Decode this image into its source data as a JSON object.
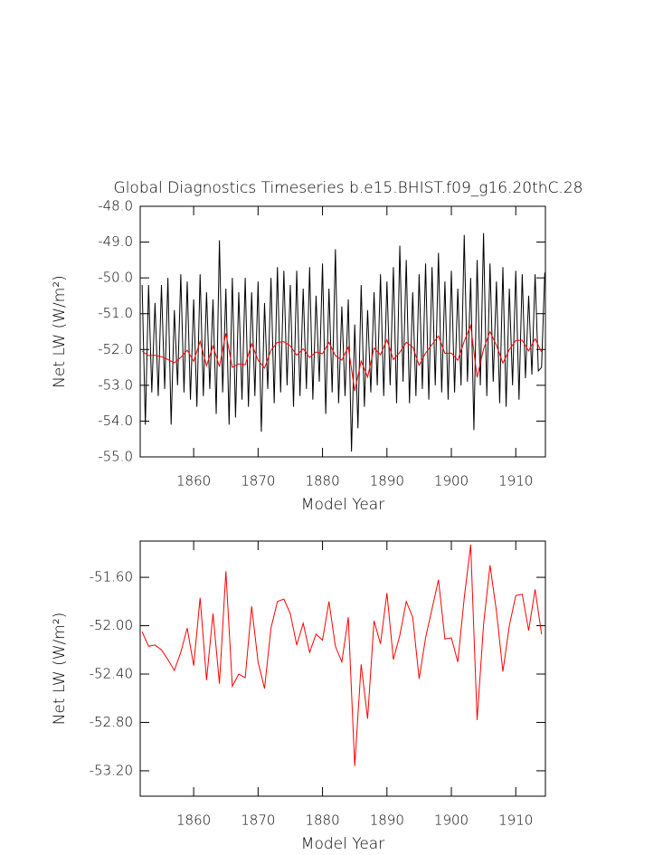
{
  "chart_data": [
    {
      "type": "line",
      "title": "Global Diagnostics Timeseries b.e15.BHIST.f09_g16.20thC.28",
      "x_label": "Model Year",
      "y_label": "Net LW (W/m²)",
      "xlim": [
        1851.7,
        1914.6
      ],
      "xticks": [
        1860,
        1870,
        1880,
        1890,
        1900,
        1910
      ],
      "ylim": [
        -55,
        -48
      ],
      "yticks": [
        {
          "value": -55,
          "label": "-55.0"
        },
        {
          "value": -54,
          "label": "-54.0"
        },
        {
          "value": -53,
          "label": "-53.0"
        },
        {
          "value": -52,
          "label": "-52.0"
        },
        {
          "value": -51,
          "label": "-51.0"
        },
        {
          "value": -50,
          "label": "-50.0"
        },
        {
          "value": -49,
          "label": "-49.0"
        },
        {
          "value": -48,
          "label": "-48.0"
        }
      ],
      "series": [
        {
          "color": "#000000",
          "x": [
            1852,
            1852.5,
            1853,
            1853.5,
            1854,
            1854.5,
            1855,
            1855.5,
            1856,
            1856.5,
            1857,
            1857.5,
            1858,
            1858.5,
            1859,
            1859.5,
            1860,
            1860.5,
            1861,
            1861.5,
            1862,
            1862.5,
            1863,
            1863.5,
            1864,
            1864.5,
            1865,
            1865.5,
            1866,
            1866.5,
            1867,
            1867.5,
            1868,
            1868.5,
            1869,
            1869.5,
            1870,
            1870.5,
            1871,
            1871.5,
            1872,
            1872.5,
            1873,
            1873.5,
            1874,
            1874.5,
            1875,
            1875.5,
            1876,
            1876.5,
            1877,
            1877.5,
            1878,
            1878.5,
            1879,
            1879.5,
            1880,
            1880.5,
            1881,
            1881.5,
            1882,
            1882.5,
            1883,
            1883.5,
            1884,
            1884.5,
            1885,
            1885.5,
            1886,
            1886.5,
            1887,
            1887.5,
            1888,
            1888.5,
            1889,
            1889.5,
            1890,
            1890.5,
            1891,
            1891.5,
            1892,
            1892.5,
            1893,
            1893.5,
            1894,
            1894.5,
            1895,
            1895.5,
            1896,
            1896.5,
            1897,
            1897.5,
            1898,
            1898.5,
            1899,
            1899.5,
            1900,
            1900.5,
            1901,
            1901.5,
            1902,
            1902.5,
            1903,
            1903.5,
            1904,
            1904.5,
            1905,
            1905.5,
            1906,
            1906.5,
            1907,
            1907.5,
            1908,
            1908.5,
            1909,
            1909.5,
            1910,
            1910.5,
            1911,
            1911.5,
            1912,
            1912.5,
            1913,
            1913.5,
            1914,
            1914.5
          ],
          "values": [
            -50.2,
            -54.1,
            -50.2,
            -53.2,
            -50.7,
            -53.3,
            -50.2,
            -53.1,
            -50.0,
            -54.1,
            -50.9,
            -53.0,
            -49.9,
            -53.2,
            -50.1,
            -53.4,
            -50.6,
            -53.6,
            -49.9,
            -53.3,
            -50.4,
            -53.1,
            -50.6,
            -53.8,
            -48.95,
            -53.2,
            -50.3,
            -54.1,
            -50.0,
            -53.9,
            -50.4,
            -53.4,
            -50.0,
            -53.6,
            -50.4,
            -53.3,
            -50.1,
            -54.3,
            -50.7,
            -53.1,
            -50.0,
            -53.5,
            -49.7,
            -53.2,
            -49.8,
            -53.0,
            -50.2,
            -53.6,
            -49.8,
            -53.3,
            -50.3,
            -53.1,
            -49.7,
            -53.4,
            -50.5,
            -52.9,
            -49.6,
            -53.8,
            -50.3,
            -53.2,
            -49.2,
            -53.5,
            -50.8,
            -53.3,
            -50.6,
            -54.85,
            -51.3,
            -54.2,
            -50.2,
            -53.6,
            -50.9,
            -53.2,
            -50.4,
            -53.0,
            -49.9,
            -53.3,
            -50.1,
            -53.0,
            -49.7,
            -53.5,
            -49.1,
            -52.9,
            -49.5,
            -53.5,
            -50.4,
            -53.3,
            -49.9,
            -53.1,
            -49.6,
            -53.4,
            -49.7,
            -53.0,
            -49.3,
            -53.2,
            -50.1,
            -53.4,
            -49.8,
            -53.2,
            -50.3,
            -53.0,
            -48.8,
            -52.9,
            -50.0,
            -54.25,
            -49.5,
            -53.0,
            -48.75,
            -53.3,
            -49.6,
            -52.9,
            -50.1,
            -53.5,
            -49.7,
            -53.6,
            -50.3,
            -53.0,
            -49.8,
            -53.4,
            -49.9,
            -52.8,
            -50.5,
            -52.7,
            -49.9,
            -52.6,
            -52.5,
            -49.85
          ]
        },
        {
          "color": "#ff0000",
          "x": [
            1852,
            1853,
            1854,
            1855,
            1856,
            1857,
            1858,
            1859,
            1860,
            1861,
            1862,
            1863,
            1864,
            1865,
            1866,
            1867,
            1868,
            1869,
            1870,
            1871,
            1872,
            1873,
            1874,
            1875,
            1876,
            1877,
            1878,
            1879,
            1880,
            1881,
            1882,
            1883,
            1884,
            1885,
            1886,
            1887,
            1888,
            1889,
            1890,
            1891,
            1892,
            1893,
            1894,
            1895,
            1896,
            1897,
            1898,
            1899,
            1900,
            1901,
            1902,
            1903,
            1904,
            1905,
            1906,
            1907,
            1908,
            1909,
            1910,
            1911,
            1912,
            1913,
            1914
          ],
          "values": [
            -52.05,
            -52.17,
            -52.16,
            -52.2,
            -52.28,
            -52.37,
            -52.22,
            -52.02,
            -52.33,
            -51.77,
            -52.45,
            -51.9,
            -52.48,
            -51.55,
            -52.5,
            -52.4,
            -52.43,
            -51.84,
            -52.3,
            -52.52,
            -52.02,
            -51.8,
            -51.78,
            -51.9,
            -52.16,
            -51.98,
            -52.22,
            -52.07,
            -52.12,
            -51.8,
            -52.17,
            -52.3,
            -51.93,
            -53.16,
            -52.32,
            -52.77,
            -51.96,
            -52.15,
            -51.73,
            -52.28,
            -52.08,
            -51.8,
            -51.93,
            -52.44,
            -52.1,
            -51.86,
            -51.62,
            -52.11,
            -52.1,
            -52.3,
            -51.77,
            -51.33,
            -52.78,
            -51.99,
            -51.5,
            -51.88,
            -52.38,
            -52.0,
            -51.75,
            -51.74,
            -52.04,
            -51.7,
            -52.07
          ]
        }
      ]
    },
    {
      "type": "line",
      "x_label": "Model Year",
      "y_label": "Net LW (W/m²)",
      "xlim": [
        1851.7,
        1914.6
      ],
      "xticks": [
        1860,
        1870,
        1880,
        1890,
        1900,
        1910
      ],
      "ylim": [
        -53.41,
        -51.3
      ],
      "yticks": [
        {
          "value": -53.2,
          "label": "-53.20"
        },
        {
          "value": -52.8,
          "label": "-52.80"
        },
        {
          "value": -52.4,
          "label": "-52.40"
        },
        {
          "value": -52,
          "label": "-52.00"
        },
        {
          "value": -51.6,
          "label": "-51.60"
        }
      ],
      "series": [
        {
          "color": "#ff0000",
          "x": [
            1852,
            1853,
            1854,
            1855,
            1856,
            1857,
            1858,
            1859,
            1860,
            1861,
            1862,
            1863,
            1864,
            1865,
            1866,
            1867,
            1868,
            1869,
            1870,
            1871,
            1872,
            1873,
            1874,
            1875,
            1876,
            1877,
            1878,
            1879,
            1880,
            1881,
            1882,
            1883,
            1884,
            1885,
            1886,
            1887,
            1888,
            1889,
            1890,
            1891,
            1892,
            1893,
            1894,
            1895,
            1896,
            1897,
            1898,
            1899,
            1900,
            1901,
            1902,
            1903,
            1904,
            1905,
            1906,
            1907,
            1908,
            1909,
            1910,
            1911,
            1912,
            1913,
            1914
          ],
          "values": [
            -52.05,
            -52.17,
            -52.16,
            -52.2,
            -52.28,
            -52.37,
            -52.22,
            -52.02,
            -52.33,
            -51.77,
            -52.45,
            -51.9,
            -52.48,
            -51.55,
            -52.5,
            -52.4,
            -52.43,
            -51.84,
            -52.3,
            -52.52,
            -52.02,
            -51.8,
            -51.78,
            -51.9,
            -52.16,
            -51.98,
            -52.22,
            -52.07,
            -52.12,
            -51.8,
            -52.17,
            -52.3,
            -51.93,
            -53.16,
            -52.32,
            -52.77,
            -51.96,
            -52.15,
            -51.73,
            -52.28,
            -52.08,
            -51.8,
            -51.93,
            -52.44,
            -52.1,
            -51.86,
            -51.62,
            -52.11,
            -52.1,
            -52.3,
            -51.77,
            -51.33,
            -52.78,
            -51.99,
            -51.5,
            -51.88,
            -52.38,
            -52.0,
            -51.75,
            -51.74,
            -52.04,
            -51.7,
            -52.07
          ]
        }
      ]
    }
  ]
}
